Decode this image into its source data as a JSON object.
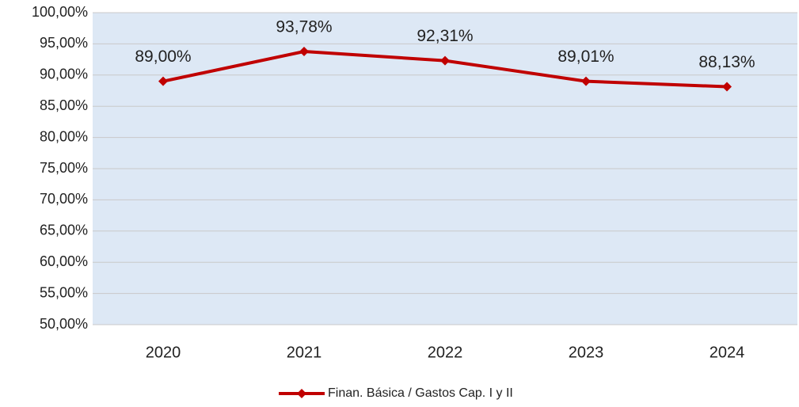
{
  "chart_data": {
    "type": "line",
    "categories": [
      "2020",
      "2021",
      "2022",
      "2023",
      "2024"
    ],
    "series": [
      {
        "name": "Finan. Básica / Gastos Cap. I y II",
        "color": "#c00000",
        "values": [
          89.0,
          93.78,
          92.31,
          89.01,
          88.13
        ],
        "value_labels": [
          "89,00%",
          "93,78%",
          "92,31%",
          "89,01%",
          "88,13%"
        ]
      }
    ],
    "ylim": [
      50,
      100
    ],
    "yticks": [
      {
        "value": 50,
        "label": "50,00%"
      },
      {
        "value": 55,
        "label": "55,00%"
      },
      {
        "value": 60,
        "label": "60,00%"
      },
      {
        "value": 65,
        "label": "65,00%"
      },
      {
        "value": 70,
        "label": "70,00%"
      },
      {
        "value": 75,
        "label": "75,00%"
      },
      {
        "value": 80,
        "label": "80,00%"
      },
      {
        "value": 85,
        "label": "85,00%"
      },
      {
        "value": 90,
        "label": "90,00%"
      },
      {
        "value": 95,
        "label": "95,00%"
      },
      {
        "value": 100,
        "label": "100,00%"
      }
    ],
    "grid": true,
    "legend": "bottom",
    "plot_background": "#dde8f5"
  }
}
